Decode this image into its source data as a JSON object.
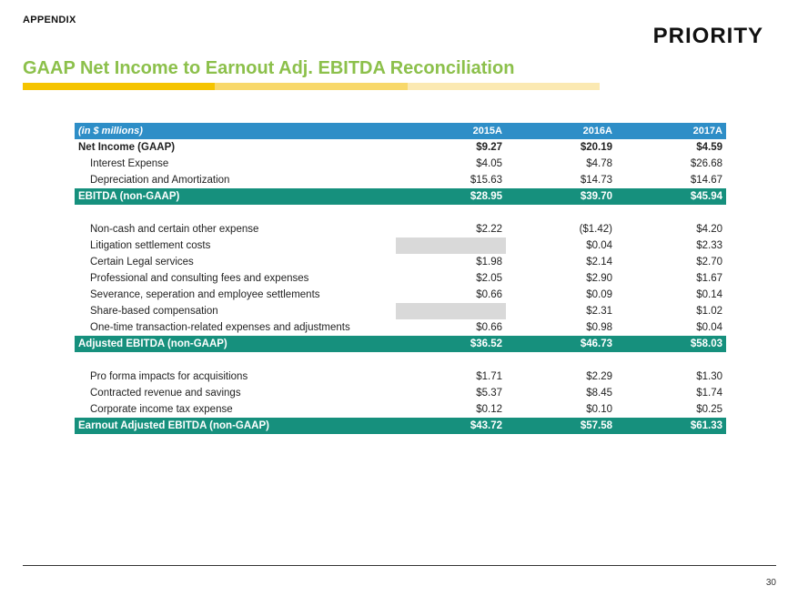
{
  "header": {
    "section": "APPENDIX",
    "logo_text": "PRIORITY"
  },
  "title": "GAAP Net Income to Earnout Adj. EBITDA Reconciliation",
  "colors": {
    "title": "#8cc04b",
    "table_header": "#2e8ec7",
    "total_rows": "#16907d",
    "title_bar": [
      "#f5c400",
      "#f8d86a",
      "#fbe9b2"
    ]
  },
  "table": {
    "header": {
      "label": "(in $ millions)",
      "cols": [
        "2015A",
        "2016A",
        "2017A"
      ]
    },
    "rows": [
      {
        "label": "Net Income (GAAP)",
        "values": [
          "$9.27",
          "$20.19",
          "$4.59"
        ]
      },
      {
        "label": "Interest Expense",
        "values": [
          "$4.05",
          "$4.78",
          "$26.68"
        ]
      },
      {
        "label": "Depreciation and Amortization",
        "values": [
          "$15.63",
          "$14.73",
          "$14.67"
        ]
      },
      {
        "label": "EBITDA (non-GAAP)",
        "values": [
          "$28.95",
          "$39.70",
          "$45.94"
        ]
      },
      {
        "label": "Non-cash and certain other expense",
        "values": [
          "$2.22",
          "($1.42)",
          "$4.20"
        ]
      },
      {
        "label": "Litigation settlement costs",
        "values": [
          "",
          "$0.04",
          "$2.33"
        ]
      },
      {
        "label": "Certain Legal services",
        "values": [
          "$1.98",
          "$2.14",
          "$2.70"
        ]
      },
      {
        "label": "Professional and consulting fees and expenses",
        "values": [
          "$2.05",
          "$2.90",
          "$1.67"
        ]
      },
      {
        "label": "Severance, seperation and employee settlements",
        "values": [
          "$0.66",
          "$0.09",
          "$0.14"
        ]
      },
      {
        "label": "Share-based compensation",
        "values": [
          "",
          "$2.31",
          "$1.02"
        ]
      },
      {
        "label": "One-time transaction-related expenses and adjustments",
        "values": [
          "$0.66",
          "$0.98",
          "$0.04"
        ]
      },
      {
        "label": "Adjusted EBITDA (non-GAAP)",
        "values": [
          "$36.52",
          "$46.73",
          "$58.03"
        ]
      },
      {
        "label": "Pro forma impacts for acquisitions",
        "values": [
          "$1.71",
          "$2.29",
          "$1.30"
        ]
      },
      {
        "label": "Contracted revenue and savings",
        "values": [
          "$5.37",
          "$8.45",
          "$1.74"
        ]
      },
      {
        "label": "Corporate income tax expense",
        "values": [
          "$0.12",
          "$0.10",
          "$0.25"
        ]
      },
      {
        "label": "Earnout Adjusted EBITDA (non-GAAP)",
        "values": [
          "$43.72",
          "$57.58",
          "$61.33"
        ]
      }
    ]
  },
  "footer": {
    "page_number": "30"
  }
}
